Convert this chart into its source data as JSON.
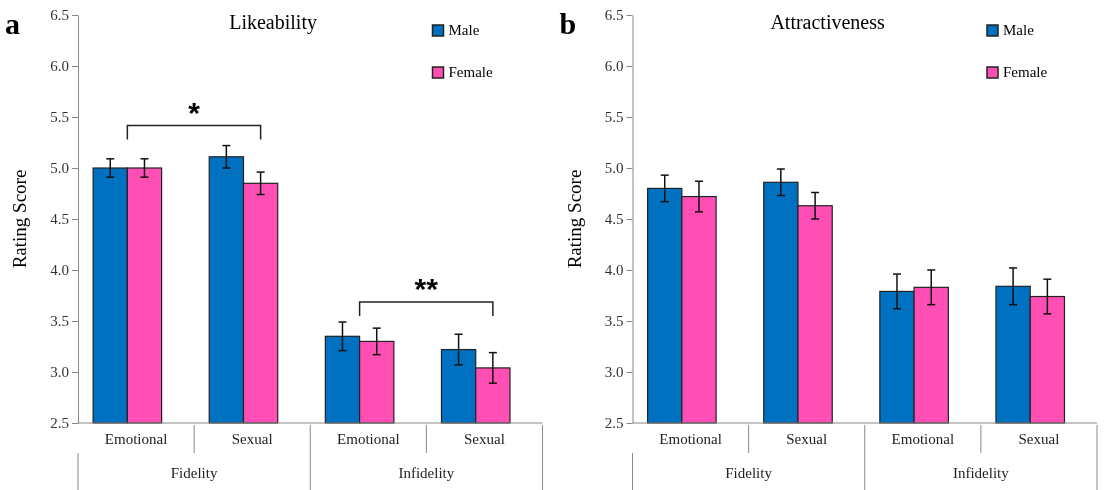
{
  "chart_data": [
    {
      "type": "bar",
      "title": "Likeability",
      "ylabel": "Rating Score",
      "categories": [
        "Emotional",
        "Sexual",
        "Emotional",
        "Sexual"
      ],
      "series": [
        {
          "name": "Male",
          "color": "#0070c0",
          "values": [
            5.0,
            5.11,
            3.35,
            3.22
          ],
          "errors": [
            0.09,
            0.11,
            0.14,
            0.15
          ]
        },
        {
          "name": "Female",
          "color": "#ff4fb5",
          "values": [
            5.0,
            4.85,
            3.3,
            3.04
          ],
          "errors": [
            0.09,
            0.11,
            0.13,
            0.15
          ]
        }
      ],
      "ylim": [
        2.5,
        6.5
      ],
      "yticks": [
        2.5,
        {
          "value": 3,
          "label": "3.0"
        },
        3.5,
        {
          "value": 4,
          "label": "4.0"
        },
        4.5,
        {
          "value": 5,
          "label": "5.0"
        },
        5.5,
        {
          "value": 6,
          "label": "6.0"
        },
        6.5
      ],
      "legend": "top right",
      "annotations": [
        "a",
        "Fidelity",
        "Infidelity",
        "*",
        "**"
      ]
    },
    {
      "type": "bar",
      "title": "Attractiveness",
      "ylabel": "Rating Score",
      "categories": [
        "Emotional",
        "Sexual",
        "Emotional",
        "Sexual"
      ],
      "series": [
        {
          "name": "Male",
          "color": "#0070c0",
          "values": [
            4.8,
            4.86,
            3.79,
            3.84
          ],
          "errors": [
            0.13,
            0.13,
            0.17,
            0.18
          ]
        },
        {
          "name": "Female",
          "color": "#ff4fb5",
          "values": [
            4.72,
            4.63,
            3.83,
            3.74
          ],
          "errors": [
            0.15,
            0.13,
            0.17,
            0.17
          ]
        }
      ],
      "ylim": [
        2.5,
        6.5
      ],
      "yticks": [
        2.5,
        {
          "value": 3,
          "label": "3.0"
        },
        3.5,
        {
          "value": 4,
          "label": "4.0"
        },
        4.5,
        {
          "value": 5,
          "label": "5.0"
        },
        5.5,
        {
          "value": 6,
          "label": "6.0"
        },
        6.5
      ],
      "legend": "top right",
      "annotations": [
        "b",
        "Fidelity",
        "Infidelity"
      ]
    }
  ]
}
